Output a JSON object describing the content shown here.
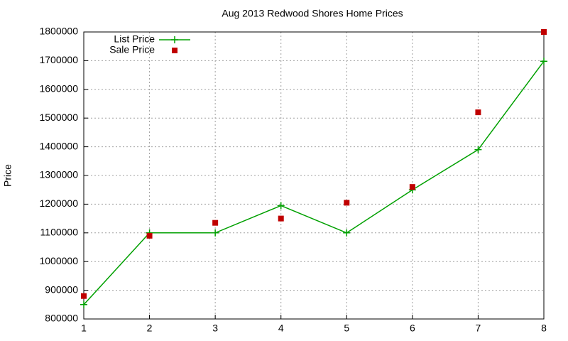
{
  "chart_data": {
    "type": "line",
    "title": "Aug 2013 Redwood Shores Home Prices",
    "y_label": "Price",
    "x": [
      1,
      2,
      3,
      4,
      5,
      6,
      7,
      8
    ],
    "series": [
      {
        "name": "List Price",
        "color": "#00a000",
        "line": true,
        "marker": "plus",
        "values": [
          850000,
          1100000,
          1100000,
          1195000,
          1100000,
          1250000,
          1390000,
          1698000
        ]
      },
      {
        "name": "Sale Price",
        "color": "#c00000",
        "line": false,
        "marker": "square",
        "values": [
          880000,
          1090000,
          1135000,
          1150000,
          1205000,
          1260000,
          1520000,
          1800000
        ]
      }
    ],
    "xlim": [
      1,
      8
    ],
    "xticks": [
      1,
      2,
      3,
      4,
      5,
      6,
      7,
      8
    ],
    "ylim": [
      800000,
      1800000
    ],
    "yticks": [
      800000,
      900000,
      1000000,
      1100000,
      1200000,
      1300000,
      1400000,
      1500000,
      1600000,
      1700000,
      1800000
    ],
    "grid": true,
    "legend": "top-left"
  }
}
